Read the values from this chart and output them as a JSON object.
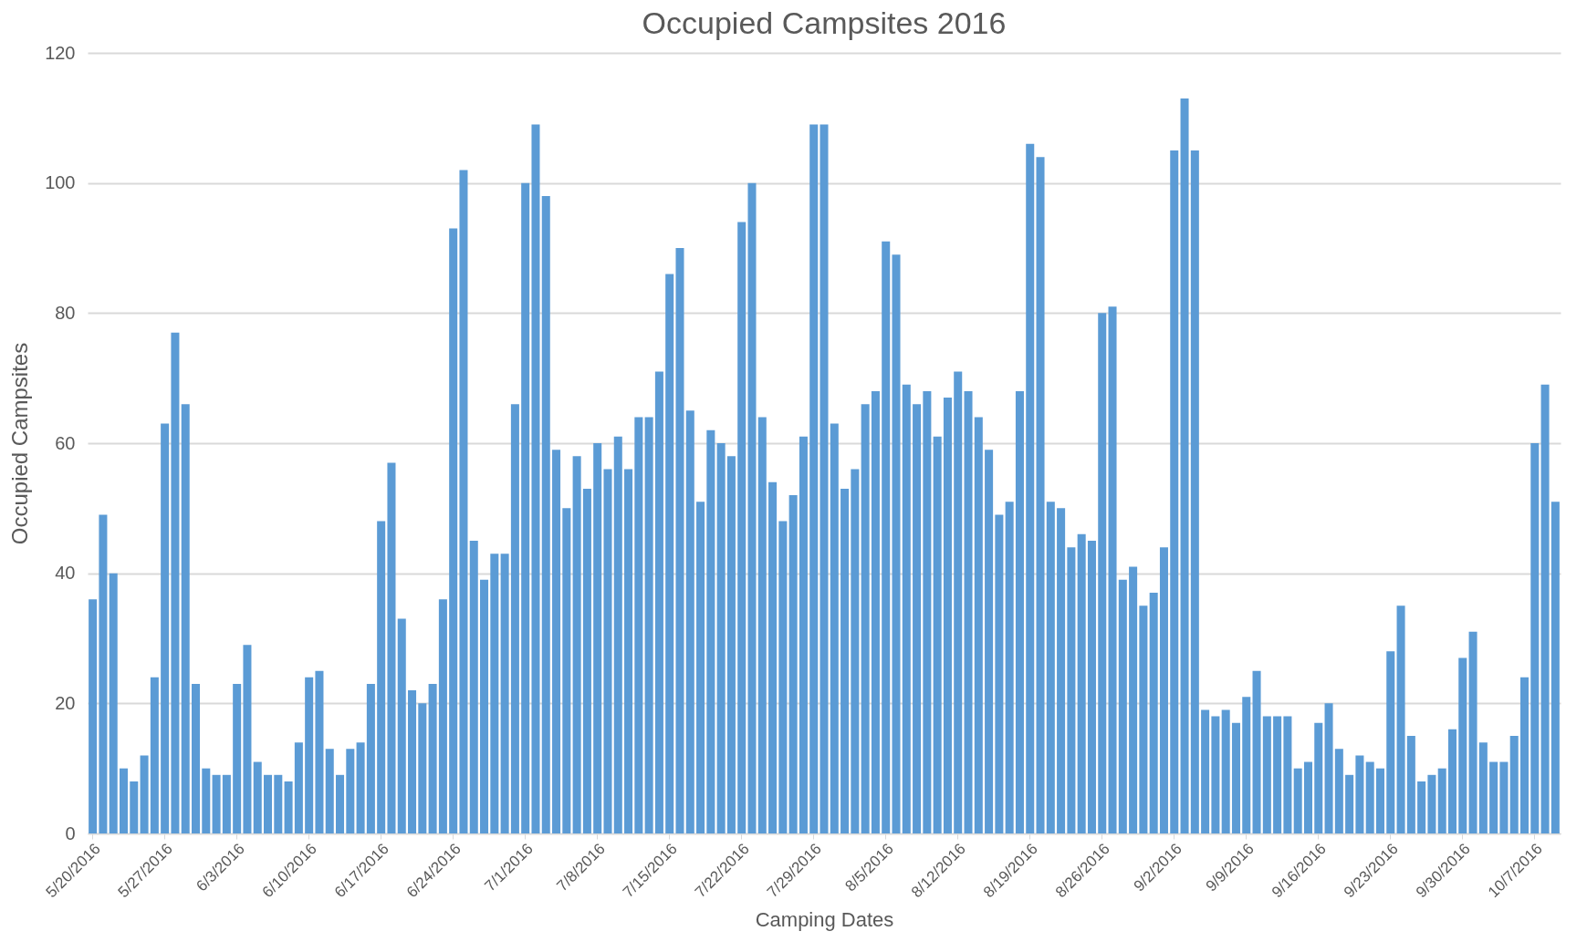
{
  "chart_data": {
    "type": "bar",
    "title": "Occupied Campsites 2016",
    "xlabel": "Camping Dates",
    "ylabel": "Occupied Campsites",
    "categories": [
      "5/20/2016",
      null,
      null,
      null,
      null,
      null,
      null,
      "5/27/2016",
      null,
      null,
      null,
      null,
      null,
      null,
      "6/3/2016",
      null,
      null,
      null,
      null,
      null,
      null,
      "6/10/2016",
      null,
      null,
      null,
      null,
      null,
      null,
      "6/17/2016",
      null,
      null,
      null,
      null,
      null,
      null,
      "6/24/2016",
      null,
      null,
      null,
      null,
      null,
      null,
      "7/1/2016",
      null,
      null,
      null,
      null,
      null,
      null,
      "7/8/2016",
      null,
      null,
      null,
      null,
      null,
      null,
      "7/15/2016",
      null,
      null,
      null,
      null,
      null,
      null,
      "7/22/2016",
      null,
      null,
      null,
      null,
      null,
      null,
      "7/29/2016",
      null,
      null,
      null,
      null,
      null,
      null,
      "8/5/2016",
      null,
      null,
      null,
      null,
      null,
      null,
      "8/12/2016",
      null,
      null,
      null,
      null,
      null,
      null,
      "8/19/2016",
      null,
      null,
      null,
      null,
      null,
      null,
      "8/26/2016",
      null,
      null,
      null,
      null,
      null,
      null,
      "9/2/2016",
      null,
      null,
      null,
      null,
      null,
      null,
      "9/9/2016",
      null,
      null,
      null,
      null,
      null,
      null,
      "9/16/2016",
      null,
      null,
      null,
      null,
      null,
      null,
      "9/23/2016",
      null,
      null,
      null,
      null,
      null,
      null,
      "9/30/2016",
      null,
      null,
      null,
      null,
      null,
      null,
      "10/7/2016",
      null,
      null
    ],
    "values": [
      36,
      49,
      40,
      10,
      8,
      12,
      24,
      63,
      77,
      66,
      23,
      10,
      9,
      9,
      23,
      29,
      11,
      9,
      9,
      8,
      14,
      24,
      25,
      13,
      9,
      13,
      14,
      23,
      48,
      57,
      33,
      22,
      20,
      23,
      36,
      93,
      102,
      45,
      39,
      43,
      43,
      66,
      100,
      109,
      98,
      59,
      50,
      58,
      53,
      60,
      56,
      61,
      56,
      64,
      64,
      71,
      86,
      90,
      65,
      51,
      62,
      60,
      58,
      94,
      100,
      64,
      54,
      48,
      52,
      61,
      109,
      109,
      63,
      53,
      56,
      66,
      68,
      91,
      89,
      69,
      66,
      68,
      61,
      67,
      71,
      68,
      64,
      59,
      49,
      51,
      68,
      106,
      104,
      51,
      50,
      44,
      46,
      45,
      80,
      81,
      39,
      41,
      35,
      37,
      44,
      105,
      113,
      105,
      19,
      18,
      19,
      17,
      21,
      25,
      18,
      18,
      18,
      10,
      11,
      17,
      20,
      13,
      9,
      12,
      11,
      10,
      28,
      35,
      15,
      8,
      9,
      10,
      16,
      27,
      31,
      14,
      11,
      11,
      15,
      24,
      60,
      69,
      51
    ],
    "color": "#5b9bd5",
    "ylim": [
      0,
      120
    ],
    "yticks": [
      0,
      20,
      40,
      60,
      80,
      100,
      120
    ],
    "grid": "y"
  }
}
